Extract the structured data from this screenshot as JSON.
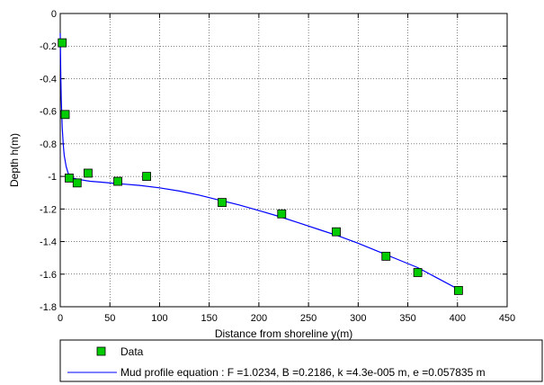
{
  "chart_data": {
    "type": "scatter",
    "title": "",
    "xlabel": "Distance from shoreline y(m)",
    "ylabel": "Depth h(m)",
    "xlim": [
      0,
      450
    ],
    "ylim": [
      -1.8,
      0
    ],
    "x_ticks": [
      "0",
      "50",
      "100",
      "150",
      "200",
      "250",
      "300",
      "350",
      "400",
      "450"
    ],
    "y_ticks": [
      "0",
      "-0.2",
      "-0.4",
      "-0.6",
      "-0.8",
      "-1",
      "-1.2",
      "-1.4",
      "-1.6",
      "-1.8"
    ],
    "grid": true,
    "legend_position": "bottom",
    "series": [
      {
        "name": "Data",
        "type": "scatter",
        "marker": "square",
        "color": "#00cc00",
        "x": [
          2,
          5,
          9,
          17,
          28,
          58,
          87,
          163,
          223,
          278,
          328,
          360,
          401
        ],
        "y": [
          -0.18,
          -0.62,
          -1.01,
          -1.04,
          -0.98,
          -1.03,
          -1.0,
          -1.16,
          -1.23,
          -1.34,
          -1.49,
          -1.59,
          -1.7
        ]
      },
      {
        "name": "Mud profile equation : F =1.0234, B =0.2186, k =4.3e-005 m, e =0.057835 m",
        "type": "line",
        "color": "#0000ff",
        "x": [
          0,
          0.5,
          1,
          2,
          3,
          4,
          6,
          8,
          10,
          13,
          16,
          20,
          25,
          30,
          40,
          50,
          60,
          80,
          100,
          120,
          140,
          160,
          180,
          200,
          220,
          240,
          260,
          280,
          300,
          320,
          340,
          360,
          380,
          400
        ],
        "y": [
          -0.12,
          -0.38,
          -0.52,
          -0.7,
          -0.8,
          -0.87,
          -0.94,
          -0.98,
          -1.0,
          -1.01,
          -1.015,
          -1.02,
          -1.025,
          -1.03,
          -1.035,
          -1.04,
          -1.045,
          -1.055,
          -1.07,
          -1.09,
          -1.115,
          -1.145,
          -1.175,
          -1.21,
          -1.245,
          -1.285,
          -1.325,
          -1.365,
          -1.41,
          -1.46,
          -1.51,
          -1.56,
          -1.625,
          -1.69
        ]
      }
    ]
  }
}
